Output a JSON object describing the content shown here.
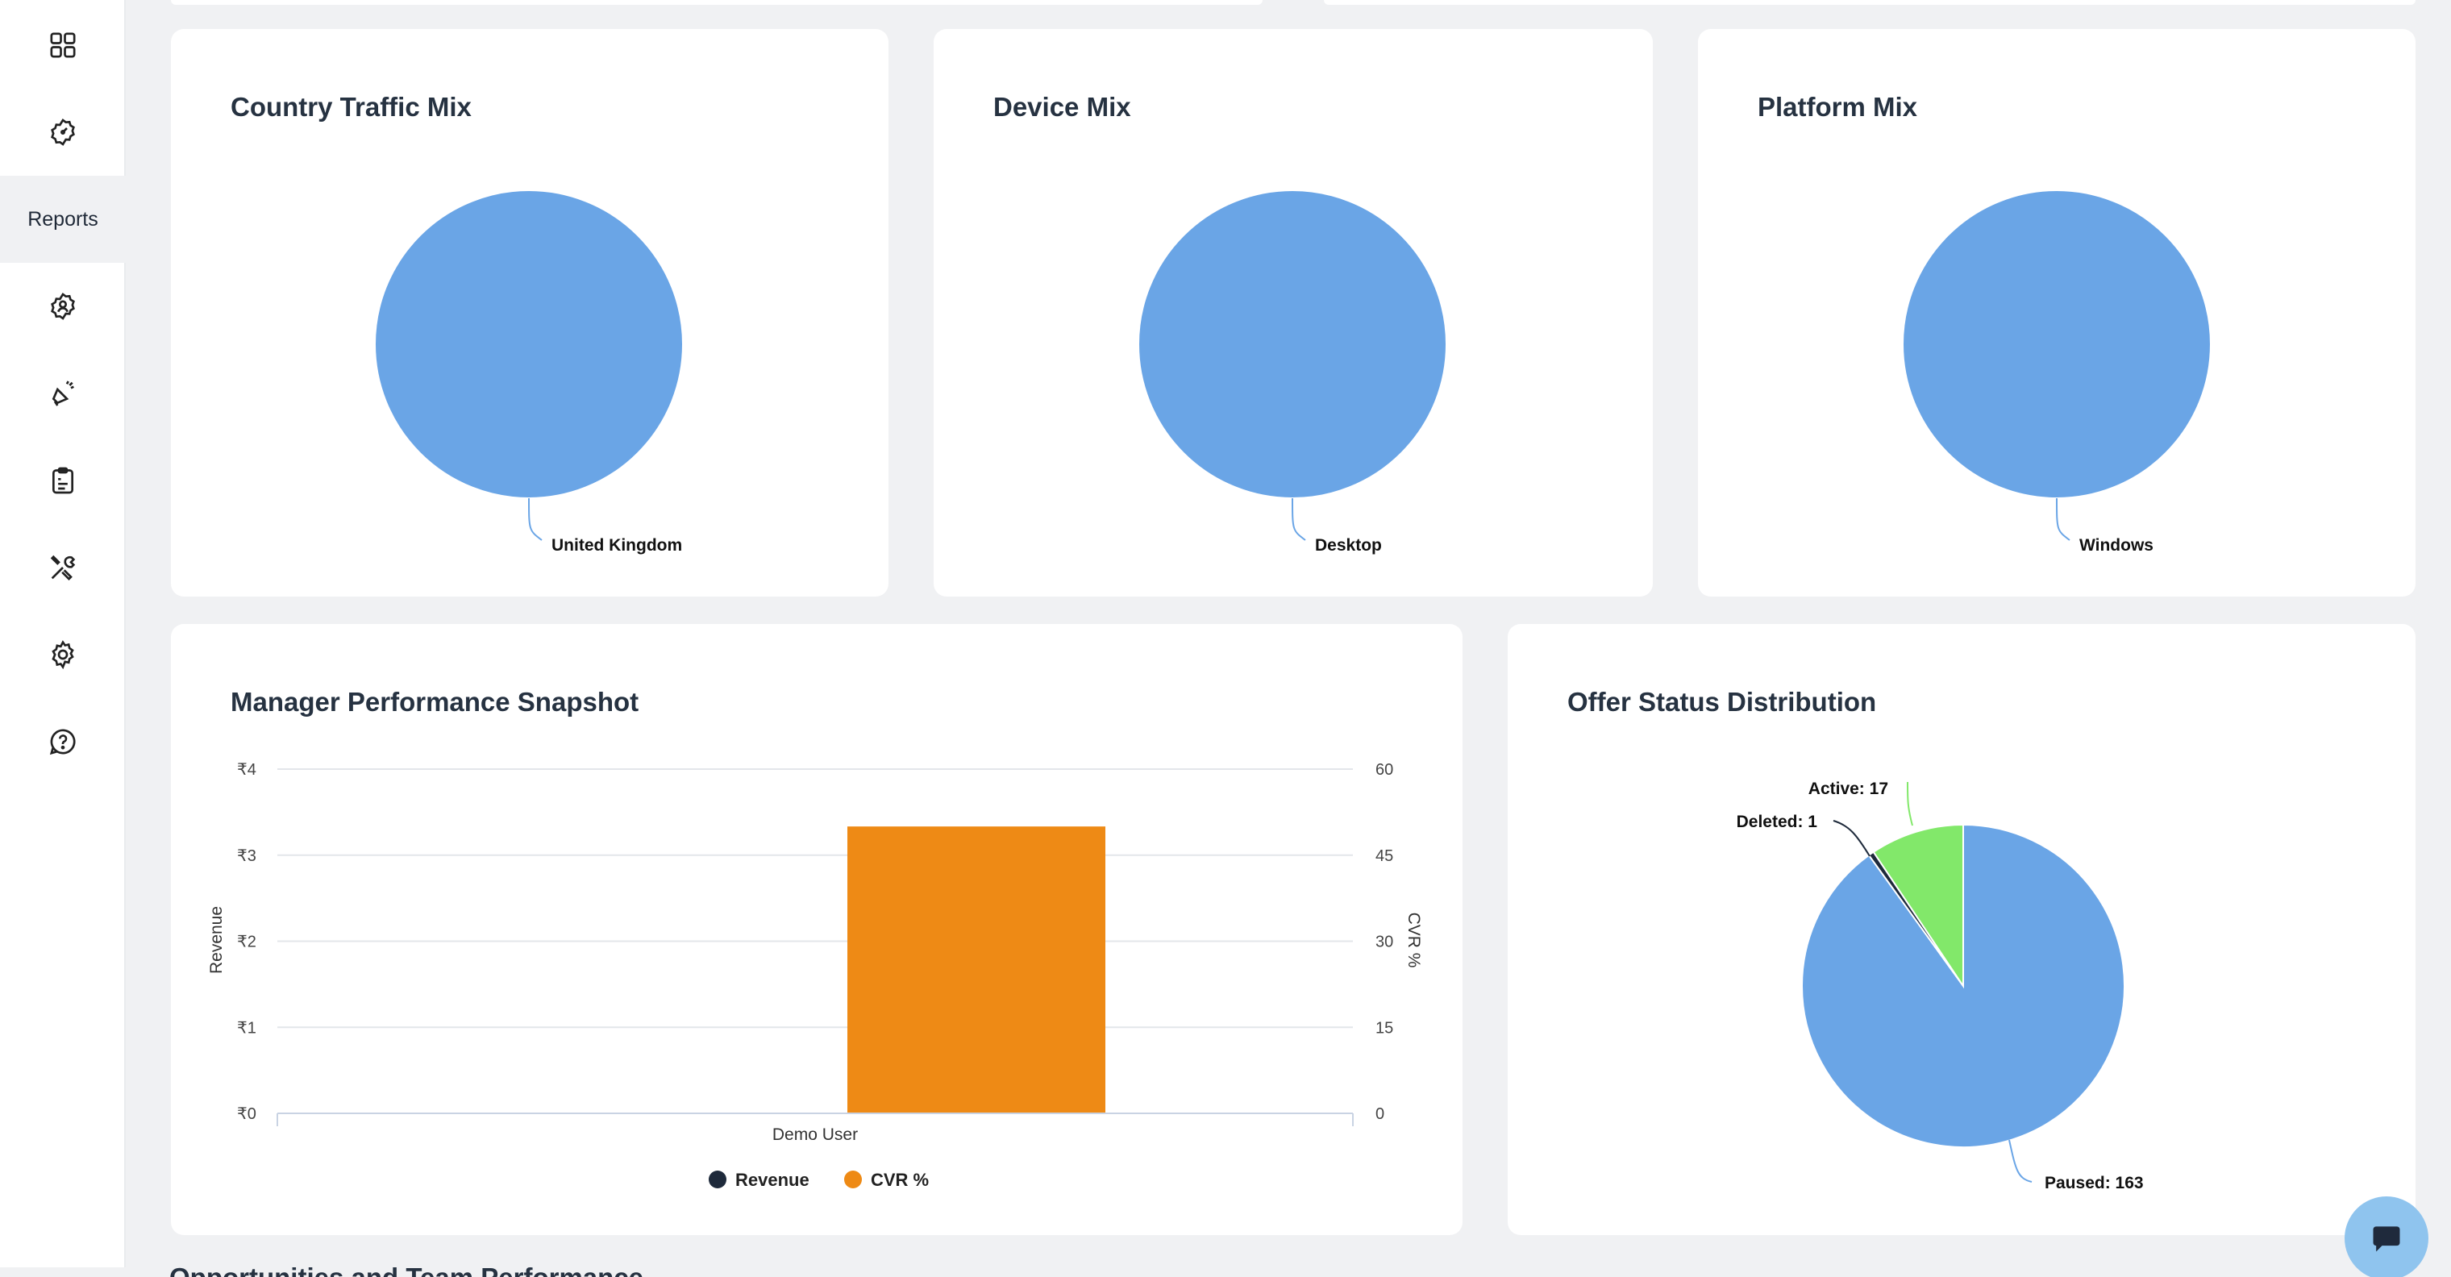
{
  "sidebar": {
    "items": [
      {
        "icon": "grid-icon",
        "label": ""
      },
      {
        "icon": "gauge-icon",
        "label": ""
      },
      {
        "icon": "",
        "label": "Reports"
      },
      {
        "icon": "user-circle-icon",
        "label": ""
      },
      {
        "icon": "megaphone-icon",
        "label": ""
      },
      {
        "icon": "clipboard-icon",
        "label": ""
      },
      {
        "icon": "tools-icon",
        "label": ""
      },
      {
        "icon": "gear-icon",
        "label": ""
      },
      {
        "icon": "help-icon",
        "label": ""
      }
    ]
  },
  "colors": {
    "blue": "#6aa5e6",
    "green": "#82e86a",
    "orange": "#ee8a15",
    "dark": "#1e2a3b"
  },
  "cards": {
    "country": {
      "title": "Country Traffic Mix"
    },
    "device": {
      "title": "Device Mix"
    },
    "platform": {
      "title": "Platform Mix"
    },
    "manager": {
      "title": "Manager Performance Snapshot"
    },
    "offer": {
      "title": "Offer Status Distribution"
    }
  },
  "next_section_title": "Opportunities and Team Performance",
  "chart_data": [
    {
      "type": "pie",
      "title": "Country Traffic Mix",
      "slices": [
        {
          "label": "United Kingdom",
          "value": 100
        }
      ]
    },
    {
      "type": "pie",
      "title": "Device Mix",
      "slices": [
        {
          "label": "Desktop",
          "value": 100
        }
      ]
    },
    {
      "type": "pie",
      "title": "Platform Mix",
      "slices": [
        {
          "label": "Windows",
          "value": 100
        }
      ]
    },
    {
      "type": "bar",
      "title": "Manager Performance Snapshot",
      "categories": [
        "Demo User"
      ],
      "series": [
        {
          "name": "Revenue",
          "axis": "left",
          "values": [
            0
          ],
          "color": "#1e2a3b"
        },
        {
          "name": "CVR %",
          "axis": "right",
          "values": [
            50
          ],
          "color": "#ee8a15"
        }
      ],
      "ylabel": "Revenue",
      "ylabel_right": "CVR %",
      "ylim": [
        0,
        4
      ],
      "yticks": [
        "₹0",
        "₹1",
        "₹2",
        "₹3",
        "₹4"
      ],
      "ylim_right": [
        0,
        60
      ],
      "yticks_right": [
        "0",
        "15",
        "30",
        "45",
        "60"
      ],
      "legend": "bottom-center",
      "grid": true
    },
    {
      "type": "pie",
      "title": "Offer Status Distribution",
      "slices": [
        {
          "label": "Active",
          "value": 17,
          "text": "Active: 17",
          "color": "#82e86a"
        },
        {
          "label": "Deleted",
          "value": 1,
          "text": "Deleted: 1",
          "color": "#1e2a3b"
        },
        {
          "label": "Paused",
          "value": 163,
          "text": "Paused: 163",
          "color": "#6aa5e6"
        }
      ]
    }
  ]
}
